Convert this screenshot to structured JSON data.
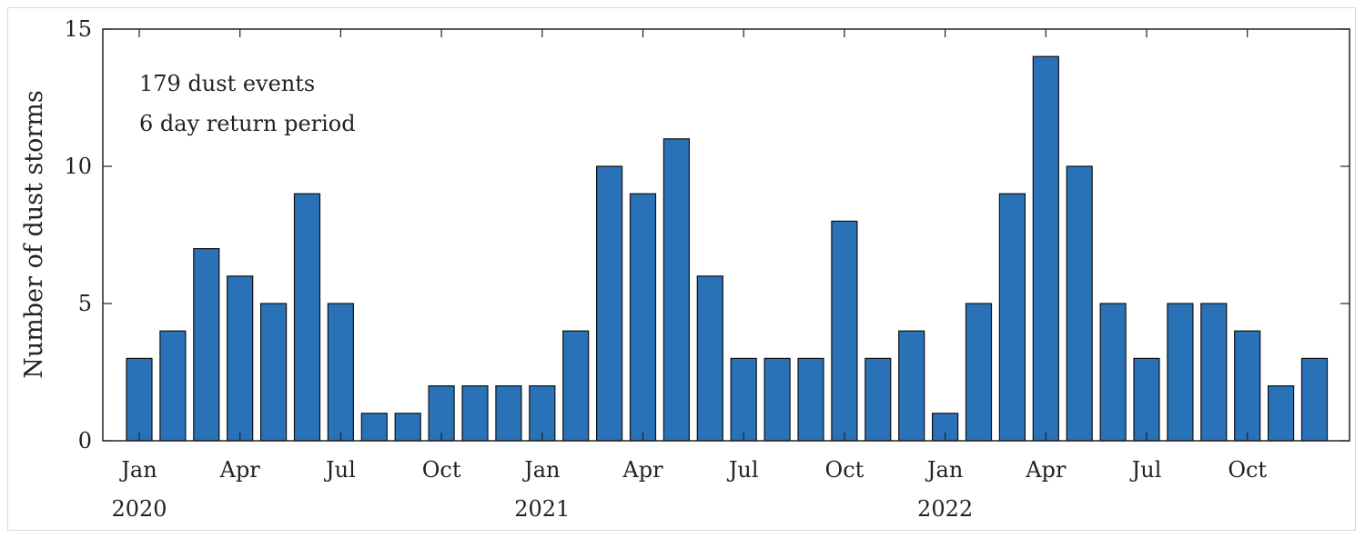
{
  "chart_data": {
    "type": "bar",
    "ylabel": "Number of dust storms",
    "ylim": [
      0,
      15
    ],
    "yticks": [
      0,
      5,
      10,
      15
    ],
    "annotations": [
      "179 dust events",
      "6 day return period"
    ],
    "categories": [
      "Jan 2020",
      "Feb 2020",
      "Mar 2020",
      "Apr 2020",
      "May 2020",
      "Jun 2020",
      "Jul 2020",
      "Aug 2020",
      "Sep 2020",
      "Oct 2020",
      "Nov 2020",
      "Dec 2020",
      "Jan 2021",
      "Feb 2021",
      "Mar 2021",
      "Apr 2021",
      "May 2021",
      "Jun 2021",
      "Jul 2021",
      "Aug 2021",
      "Sep 2021",
      "Oct 2021",
      "Nov 2021",
      "Dec 2021",
      "Jan 2022",
      "Feb 2022",
      "Mar 2022",
      "Apr 2022",
      "May 2022",
      "Jun 2022",
      "Jul 2022",
      "Aug 2022",
      "Sep 2022",
      "Oct 2022",
      "Nov 2022",
      "Dec 2022"
    ],
    "values": [
      3,
      4,
      7,
      6,
      5,
      9,
      5,
      1,
      1,
      2,
      2,
      2,
      2,
      4,
      10,
      9,
      11,
      6,
      3,
      3,
      3,
      8,
      3,
      4,
      1,
      5,
      9,
      14,
      10,
      5,
      3,
      5,
      5,
      4,
      2,
      3
    ],
    "xtick_labels": [
      {
        "index": 0,
        "label": "Jan"
      },
      {
        "index": 3,
        "label": "Apr"
      },
      {
        "index": 6,
        "label": "Jul"
      },
      {
        "index": 9,
        "label": "Oct"
      },
      {
        "index": 12,
        "label": "Jan"
      },
      {
        "index": 15,
        "label": "Apr"
      },
      {
        "index": 18,
        "label": "Jul"
      },
      {
        "index": 21,
        "label": "Oct"
      },
      {
        "index": 24,
        "label": "Jan"
      },
      {
        "index": 27,
        "label": "Apr"
      },
      {
        "index": 30,
        "label": "Jul"
      },
      {
        "index": 33,
        "label": "Oct"
      }
    ],
    "year_labels": [
      {
        "index": 0,
        "label": "2020"
      },
      {
        "index": 12,
        "label": "2021"
      },
      {
        "index": 24,
        "label": "2022"
      }
    ],
    "bar_color": "#2a72b8",
    "grid": false
  }
}
